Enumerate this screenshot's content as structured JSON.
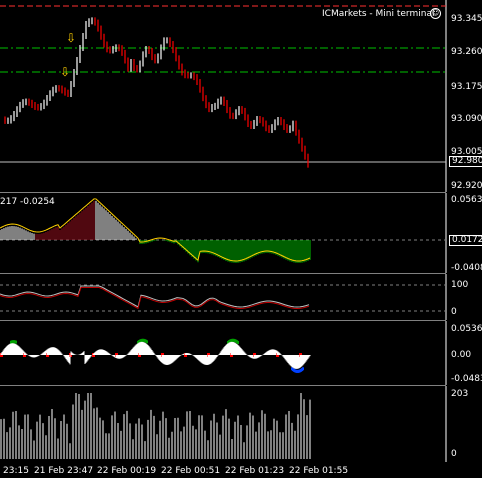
{
  "header": {
    "title": "ICMarkets - Mini terminal",
    "smile_icon": "smile-icon"
  },
  "main_chart": {
    "price_axis": [
      "93.345",
      "93.260",
      "93.175",
      "93.090",
      "93.005",
      "92.920"
    ],
    "current_price": "92.980",
    "colors": {
      "up": "#ffffff",
      "down": "#ff0000",
      "level": "#00c000",
      "arrow": "#ffd000",
      "top_line": "#ff3030"
    },
    "arrow_icons": [
      "down-arrow-icon",
      "up-arrow-icon"
    ]
  },
  "macd_pane": {
    "label": "217 -0.0254",
    "axis": [
      "0.0563",
      "0.0172",
      "-0.0408"
    ]
  },
  "rsi_pane": {
    "axis": [
      "100",
      "0"
    ]
  },
  "osc_pane": {
    "axis": [
      "0.0536",
      "0.00",
      "-0.0483"
    ]
  },
  "volume_pane": {
    "axis": [
      "203",
      "0"
    ]
  },
  "time_axis": [
    "23:15",
    "21 Feb 23:47",
    "22 Feb 00:19",
    "22 Feb 00:51",
    "22 Feb 01:23",
    "22 Feb 01:55"
  ]
}
